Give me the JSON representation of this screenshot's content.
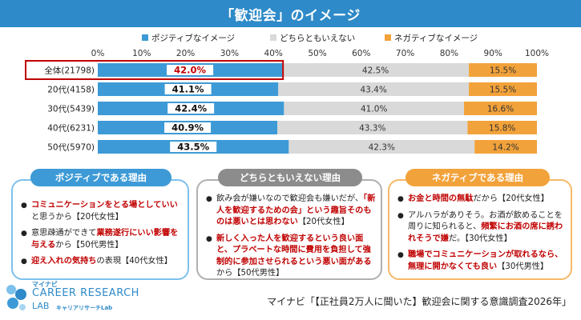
{
  "title": "「歓迎会」のイメージ",
  "chart_data": {
    "type": "bar",
    "orientation": "horizontal-stacked-100",
    "categories": [
      "全体(21798)",
      "20代(4158)",
      "30代(5439)",
      "40代(6231)",
      "50代(5970)"
    ],
    "series": [
      {
        "name": "ポジティブなイメージ",
        "color": "#3d9ad6",
        "values": [
          42.0,
          41.1,
          42.4,
          40.9,
          43.5
        ]
      },
      {
        "name": "どちらともいえない",
        "color": "#d9d9d9",
        "values": [
          42.5,
          43.4,
          41.0,
          43.3,
          42.3
        ]
      },
      {
        "name": "ネガティブなイメージ",
        "color": "#f2a23a",
        "values": [
          15.5,
          15.5,
          16.6,
          15.8,
          14.2
        ]
      }
    ],
    "value_labels": [
      [
        "42.0%",
        "41.1%",
        "42.4%",
        "40.9%",
        "43.5%"
      ],
      [
        "42.5%",
        "43.4%",
        "41.0%",
        "43.3%",
        "42.3%"
      ],
      [
        "15.5%",
        "15.5%",
        "16.6%",
        "15.8%",
        "14.2%"
      ]
    ],
    "ticks": [
      "0%",
      "10%",
      "20%",
      "30%",
      "40%",
      "50%",
      "60%",
      "70%",
      "80%",
      "90%",
      "100%"
    ],
    "xlim": [
      0,
      100
    ],
    "highlighted_category": "全体(21798)",
    "legend_position": "top"
  },
  "panels": {
    "positive": {
      "heading": "ポジティブである理由",
      "color": "#3d9ad6",
      "items": [
        {
          "hl": "コミュニケーションをとる場としていい",
          "rest": "と思うから【20代女性】"
        },
        {
          "pre": "意思疎通ができて",
          "hl": "業務遂行にいい影響を与える",
          "rest": "から【50代男性】"
        },
        {
          "hl": "迎え入れの気持ち",
          "rest": "の表現【40代女性】"
        }
      ]
    },
    "neutral": {
      "heading": "どちらともいえない理由",
      "color": "#8c8c8c",
      "items": [
        {
          "pre": "飲み会が嫌いなので歓迎会も嫌いだが、",
          "hl": "「新人を歓迎するための会」という趣旨そのものは悪いとは思わない",
          "rest": "【20代女性】"
        },
        {
          "hl": "新しく入った人を歓迎するという良い面と、プラベートな時間に費用を負担して強制的に参加させられるという悪い面がある",
          "rest": "から【50代男性】"
        }
      ]
    },
    "negative": {
      "heading": "ネガティブである理由",
      "color": "#f2a23a",
      "items": [
        {
          "hl": "お金と時間の無駄",
          "rest": "だから【20代女性】"
        },
        {
          "pre": "アルハラがありそう。お酒が飲めることを周りに知られると、",
          "hl": "頻繁にお酒の席に誘われそうで嫌",
          "rest": "だ。【30代女性】"
        },
        {
          "hl": "職場でコミュニケーションが取れるなら、無理に開かなくても良い",
          "rest": "【30代男性】"
        }
      ]
    }
  },
  "logo": {
    "small": "マイナビ",
    "name": "CAREER RESEARCH",
    "lab": "LAB",
    "kana": "キャリアリサーチLab"
  },
  "source": "マイナビ「【正社員2万人に聞いた】歓迎会に関する意識調査2026年」"
}
